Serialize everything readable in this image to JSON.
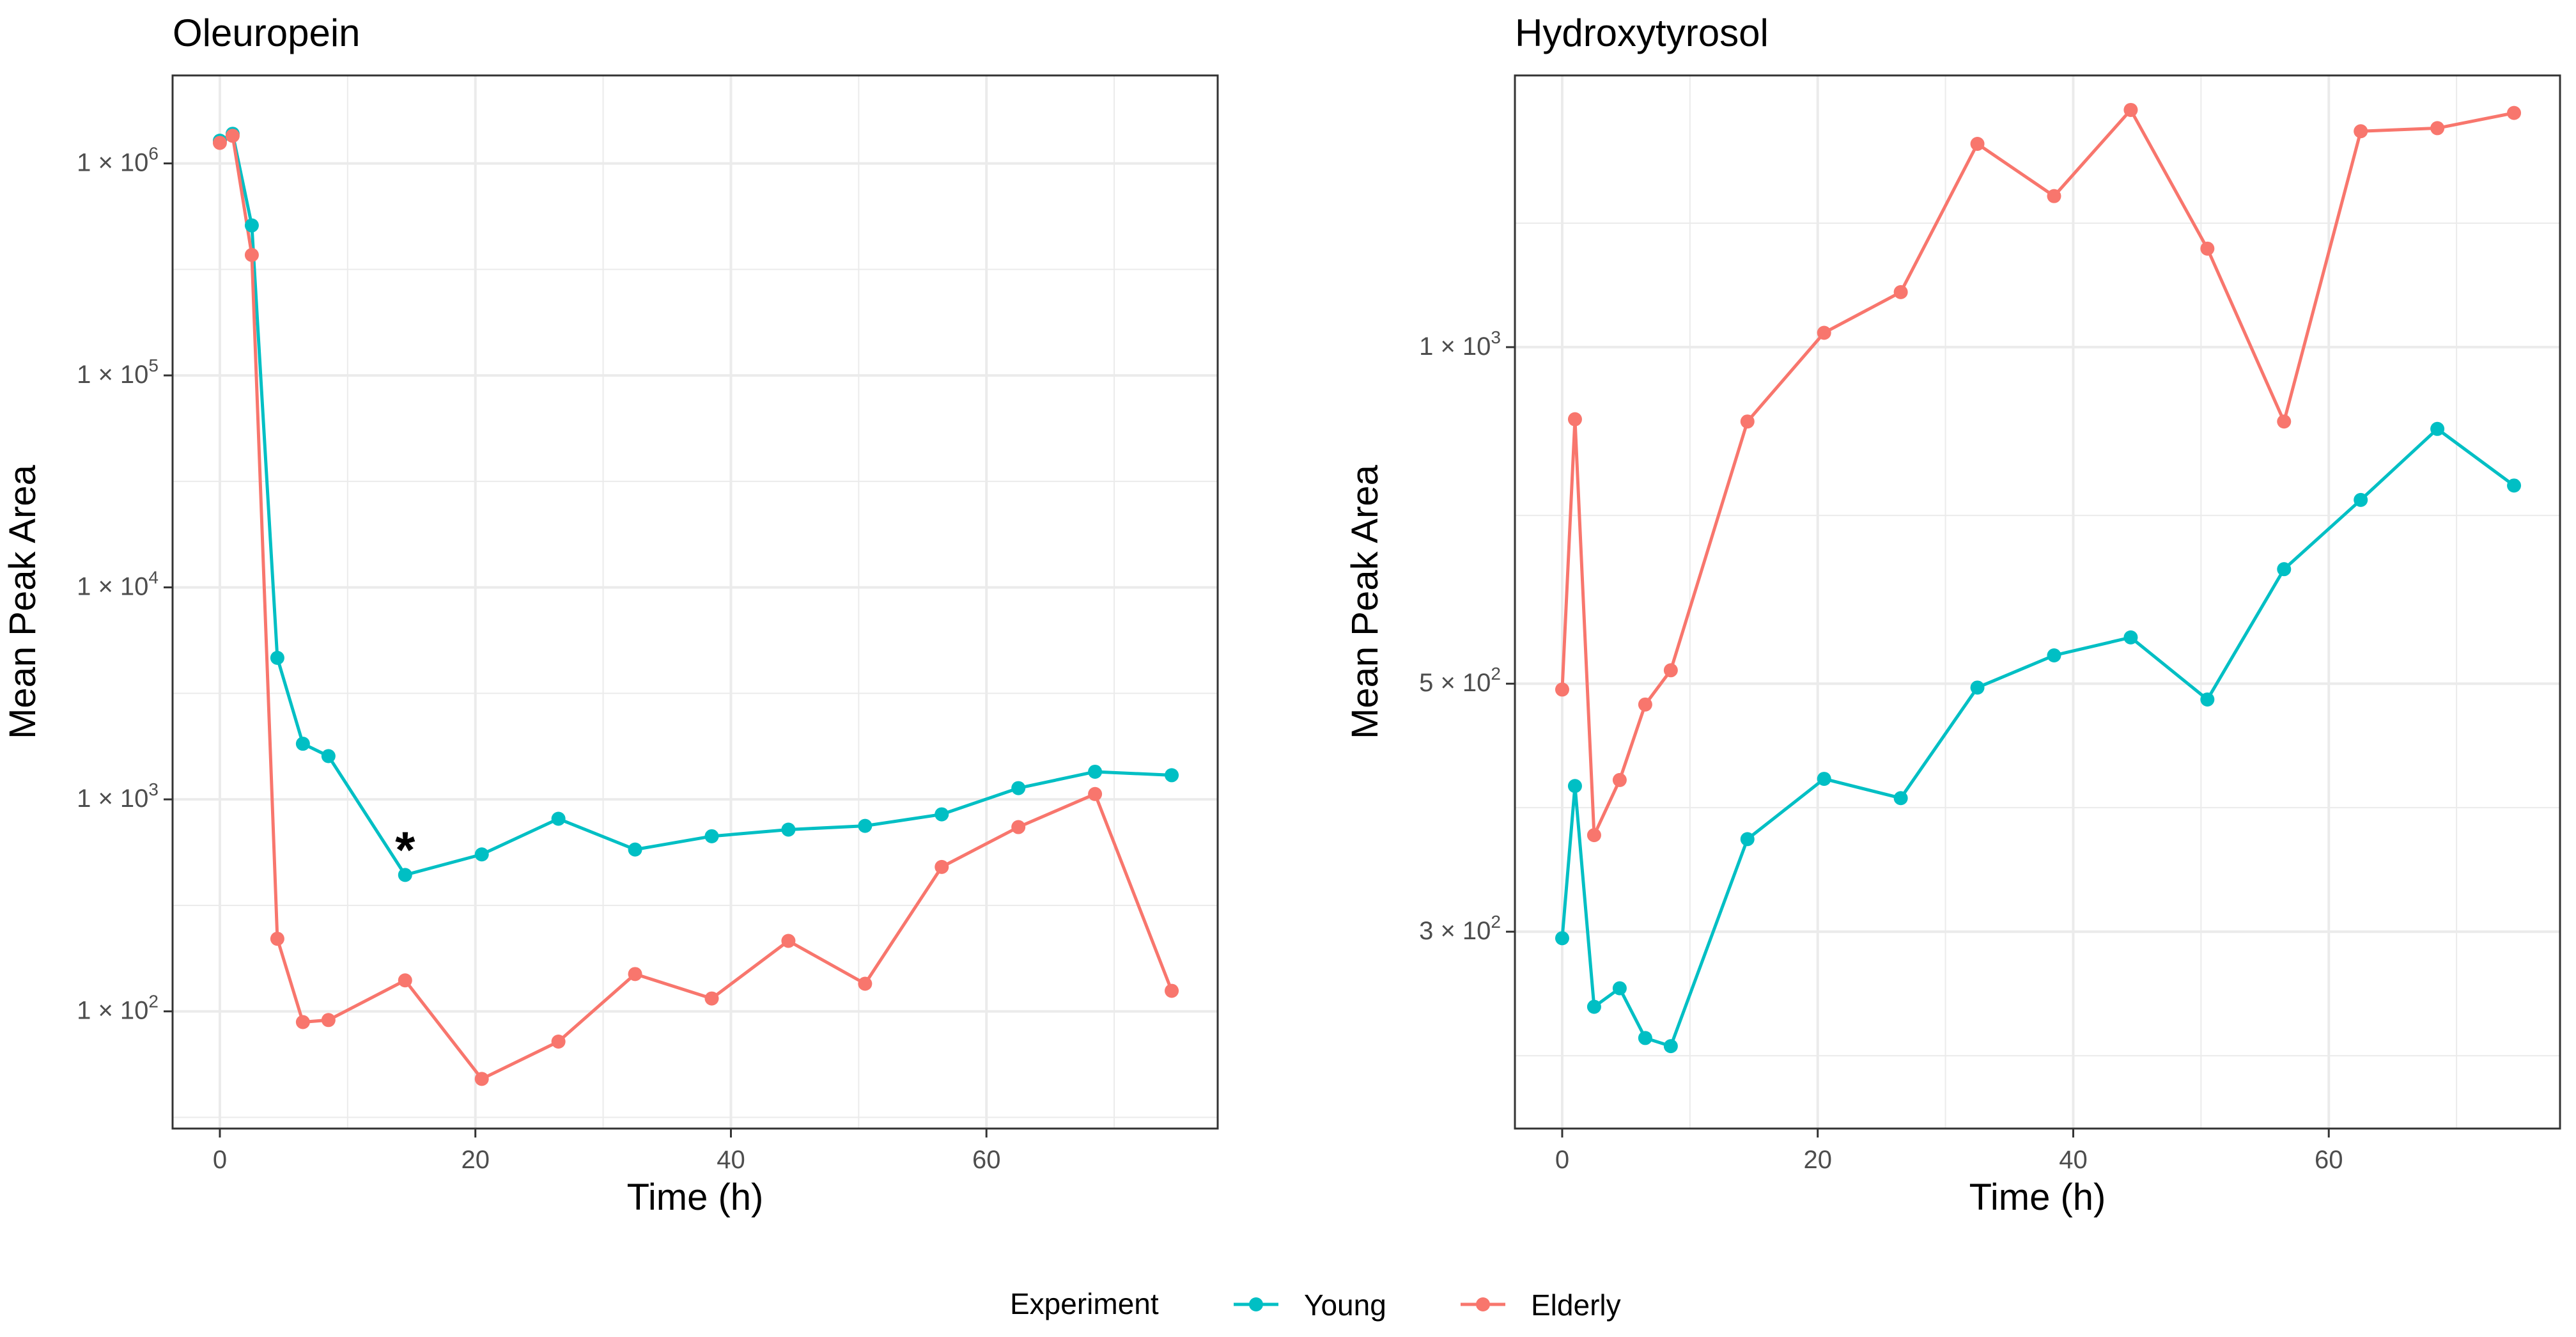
{
  "colors": {
    "young": "#00BFC4",
    "elderly": "#F8766D",
    "grid": "#EBEBEB",
    "panel_border": "#333333",
    "tick_text": "#4D4D4D"
  },
  "legend": {
    "title": "Experiment",
    "placement": "bottom",
    "entries": [
      {
        "label": "Young",
        "color": "#00BFC4"
      },
      {
        "label": "Elderly",
        "color": "#F8766D"
      }
    ]
  },
  "chart_data": [
    {
      "type": "line",
      "title": "Oleuropein",
      "xlabel": "Time (h)",
      "ylabel": "Mean Peak Area",
      "y_scale": "log",
      "xlim": [
        -3.7,
        78.1
      ],
      "ylim": [
        28,
        2600000
      ],
      "xticks": [
        0,
        20,
        40,
        60
      ],
      "xtick_labels": [
        "0",
        "20",
        "40",
        "60"
      ],
      "yticks": [
        100,
        1000,
        10000,
        100000,
        1000000
      ],
      "ytick_labels": [
        {
          "base": "1 × 10",
          "exp": "2"
        },
        {
          "base": "1 × 10",
          "exp": "3"
        },
        {
          "base": "1 × 10",
          "exp": "4"
        },
        {
          "base": "1 × 10",
          "exp": "5"
        },
        {
          "base": "1 × 10",
          "exp": "6"
        }
      ],
      "grid": true,
      "x": [
        0,
        1,
        2.5,
        4.5,
        6.5,
        8.5,
        14.5,
        20.5,
        26.5,
        32.5,
        38.5,
        44.5,
        50.5,
        56.5,
        62.5,
        68.5,
        74.5
      ],
      "series": [
        {
          "name": "Young",
          "color": "#00BFC4",
          "values": [
            1280000,
            1380000,
            510000,
            4650,
            1830,
            1600,
            440,
            550,
            810,
            580,
            670,
            720,
            750,
            850,
            1130,
            1350,
            1300
          ]
        },
        {
          "name": "Elderly",
          "color": "#F8766D",
          "values": [
            1250000,
            1350000,
            370000,
            220,
            89,
            91,
            140,
            48,
            72,
            150,
            115,
            215,
            135,
            480,
            740,
            1060,
            125
          ]
        }
      ],
      "annotations": [
        {
          "text": "*",
          "x": 14.5,
          "y": 440
        }
      ]
    },
    {
      "type": "line",
      "title": "Hydroxytyrosol",
      "xlabel": "Time (h)",
      "ylabel": "Mean Peak Area",
      "y_scale": "log",
      "xlim": [
        -3.7,
        78.1
      ],
      "ylim": [
        200,
        1750
      ],
      "xticks": [
        0,
        20,
        40,
        60
      ],
      "xtick_labels": [
        "0",
        "20",
        "40",
        "60"
      ],
      "yticks": [
        300,
        500,
        1000
      ],
      "ytick_labels": [
        {
          "base": "3 × 10",
          "exp": "2"
        },
        {
          "base": "5 × 10",
          "exp": "2"
        },
        {
          "base": "1 × 10",
          "exp": "3"
        }
      ],
      "grid": true,
      "x": [
        0,
        1,
        2.5,
        4.5,
        6.5,
        8.5,
        14.5,
        20.5,
        26.5,
        32.5,
        38.5,
        44.5,
        50.5,
        56.5,
        62.5,
        68.5,
        74.5
      ],
      "series": [
        {
          "name": "Young",
          "color": "#00BFC4",
          "values": [
            296,
            405,
            257,
            267,
            241,
            237,
            363,
            411,
            395,
            496,
            530,
            550,
            484,
            633,
            730,
            845,
            752
          ]
        },
        {
          "name": "Elderly",
          "color": "#F8766D",
          "values": [
            494,
            862,
            366,
            410,
            479,
            514,
            858,
            1030,
            1120,
            1520,
            1365,
            1630,
            1225,
            858,
            1560,
            1570,
            1620
          ]
        }
      ]
    }
  ]
}
